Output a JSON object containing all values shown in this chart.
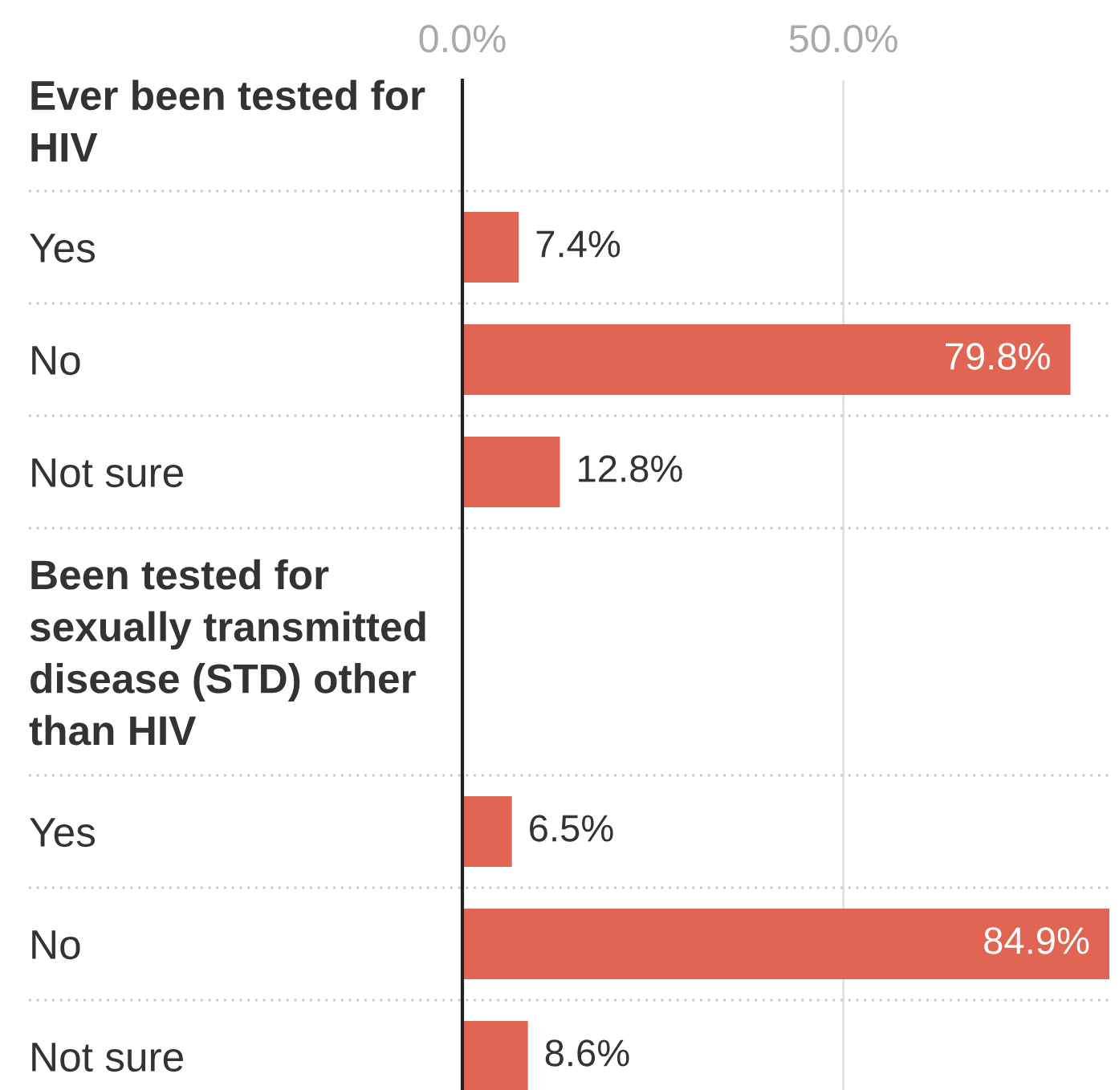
{
  "chart_data": {
    "type": "bar",
    "orientation": "horizontal",
    "categories": [
      "Ever been tested for HIV",
      "Yes",
      "No",
      "Not sure",
      "Been tested for sexually transmitted disease (STD) other than HIV",
      "Yes",
      "No",
      "Not sure"
    ],
    "values": [
      null,
      7.4,
      79.8,
      12.8,
      null,
      6.5,
      84.9,
      8.6
    ],
    "value_labels": [
      null,
      "7.4%",
      "79.8%",
      "12.8%",
      null,
      "6.5%",
      "84.9%",
      "8.6%"
    ],
    "color": "#e06553",
    "xlim": [
      0,
      84.9
    ],
    "xticks": [
      {
        "value": 0,
        "label": "0.0%"
      },
      {
        "value": 50,
        "label": "50.0%"
      }
    ],
    "ref_lines": [
      {
        "axis": "x",
        "value": 50,
        "color": "#e0e0e0"
      }
    ],
    "grid": "y"
  }
}
